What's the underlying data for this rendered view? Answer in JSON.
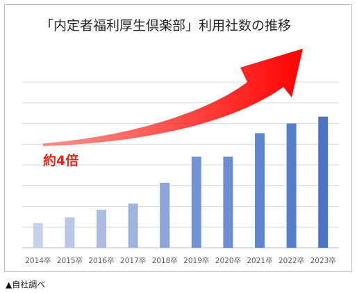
{
  "chart_data": {
    "type": "bar",
    "title": "「内定者福利厚生倶楽部」利用社数の推移",
    "categories": [
      "2014卒",
      "2015卒",
      "2016卒",
      "2017卒",
      "2018卒",
      "2019卒",
      "2020卒",
      "2021卒",
      "2022卒",
      "2023卒"
    ],
    "values": [
      1.8,
      2.2,
      2.75,
      3.2,
      4.7,
      6.6,
      6.6,
      8.3,
      9.0,
      9.5
    ],
    "ylim": [
      0,
      12
    ],
    "grid": true,
    "bar_colors": [
      "#c6d2ec",
      "#b9c8e8",
      "#acbde4",
      "#9fb3e0",
      "#8ba4d9",
      "#7394d4",
      "#6b8ed2",
      "#5f85cf",
      "#557ecb",
      "#4a74c6"
    ],
    "annotation": {
      "text": "約4倍",
      "color": "#e5251b"
    },
    "arrow_color": "#ff0000"
  },
  "footer": {
    "source": "▲自社調べ"
  }
}
